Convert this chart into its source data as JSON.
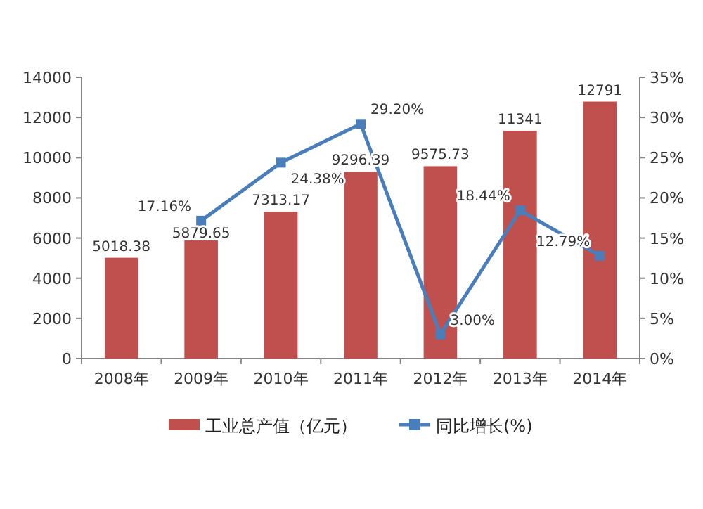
{
  "chart_data": {
    "type": "bar",
    "categories": [
      "2008年",
      "2009年",
      "2010年",
      "2011年",
      "2012年",
      "2013年",
      "2014年"
    ],
    "series": [
      {
        "name": "工业总产值（亿元）",
        "type": "bar",
        "color": "#c0504d",
        "values": [
          5018.38,
          5879.65,
          7313.17,
          9296.39,
          9575.73,
          11341,
          12791
        ],
        "value_labels": [
          "5018.38",
          "5879.65",
          "7313.17",
          "9296.39",
          "9575.73",
          "11341",
          "12791"
        ]
      },
      {
        "name": "同比增长(%)",
        "type": "line",
        "axis": "y2",
        "color": "#4a7ebb",
        "marker": "square",
        "values": [
          null,
          17.16,
          24.38,
          29.2,
          3.0,
          18.44,
          12.79
        ],
        "value_labels": [
          null,
          "17.16%",
          "24.38%",
          "29.20%",
          "3.00%",
          "18.44%",
          "12.79%"
        ]
      }
    ],
    "ylim": [
      0,
      14000
    ],
    "yticks": [
      0,
      2000,
      4000,
      6000,
      8000,
      10000,
      12000,
      14000
    ],
    "y2lim": [
      0,
      35
    ],
    "y2ticks": [
      {
        "value": 0,
        "label": "0%"
      },
      {
        "value": 5,
        "label": "5%"
      },
      {
        "value": 10,
        "label": "10%"
      },
      {
        "value": 15,
        "label": "15%"
      },
      {
        "value": 20,
        "label": "20%"
      },
      {
        "value": 25,
        "label": "25%"
      },
      {
        "value": 30,
        "label": "30%"
      },
      {
        "value": 35,
        "label": "35%"
      }
    ],
    "legend": "bottom"
  }
}
